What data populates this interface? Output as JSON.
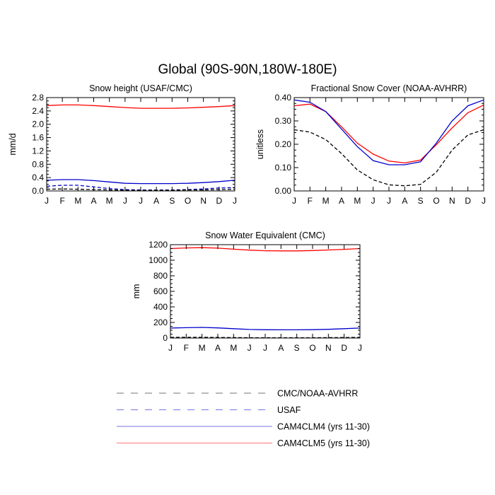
{
  "page_title": "Global (90S-90N,180W-180E)",
  "months": [
    "J",
    "F",
    "M",
    "A",
    "M",
    "J",
    "J",
    "A",
    "S",
    "O",
    "N",
    "D",
    "J"
  ],
  "legend": [
    {
      "key": "cmc",
      "label": "CMC/NOAA-AVHRR",
      "color": "#000000",
      "dash": "dashed"
    },
    {
      "key": "usaf",
      "label": "USAF",
      "color": "#0000cc",
      "dash": "dashed"
    },
    {
      "key": "clm4",
      "label": "CAM4CLM4 (yrs 11-30)",
      "color": "#0000cc",
      "dash": "solid"
    },
    {
      "key": "clm5",
      "label": "CAM4CLM5 (yrs 11-30)",
      "color": "#ff0000",
      "dash": "solid"
    }
  ],
  "chart_data": [
    {
      "type": "line",
      "title": "Snow height (USAF/CMC)",
      "ylabel": "mm/d",
      "ylim": [
        0,
        2.8
      ],
      "yticks": [
        "0.0",
        "0.4",
        "0.8",
        "1.2",
        "1.6",
        "2.0",
        "2.4",
        "2.8"
      ],
      "ytick_values": [
        0,
        0.4,
        0.8,
        1.2,
        1.6,
        2.0,
        2.4,
        2.8
      ],
      "series": [
        {
          "key": "clm5",
          "values": [
            2.56,
            2.58,
            2.58,
            2.56,
            2.53,
            2.5,
            2.48,
            2.48,
            2.48,
            2.49,
            2.51,
            2.53,
            2.56
          ]
        },
        {
          "key": "clm4",
          "values": [
            0.32,
            0.34,
            0.34,
            0.31,
            0.27,
            0.23,
            0.22,
            0.22,
            0.22,
            0.23,
            0.25,
            0.28,
            0.32
          ]
        },
        {
          "key": "usaf",
          "values": [
            0.14,
            0.17,
            0.17,
            0.12,
            0.07,
            0.04,
            0.03,
            0.03,
            0.03,
            0.04,
            0.06,
            0.09,
            0.1
          ]
        },
        {
          "key": "cmc",
          "values": [
            0.05,
            0.06,
            0.05,
            0.04,
            0.03,
            0.02,
            0.02,
            0.02,
            0.02,
            0.03,
            0.03,
            0.04,
            0.05
          ]
        }
      ]
    },
    {
      "type": "line",
      "title": "Fractional Snow Cover (NOAA-AVHRR)",
      "ylabel": "unitless",
      "ylim": [
        0,
        0.4
      ],
      "yticks": [
        "0.00",
        "0.10",
        "0.20",
        "0.30",
        "0.40"
      ],
      "ytick_values": [
        0,
        0.1,
        0.2,
        0.3,
        0.4
      ],
      "series": [
        {
          "key": "clm5",
          "values": [
            0.365,
            0.372,
            0.34,
            0.275,
            0.205,
            0.158,
            0.128,
            0.12,
            0.132,
            0.198,
            0.27,
            0.335,
            0.368
          ]
        },
        {
          "key": "clm4",
          "values": [
            0.39,
            0.38,
            0.34,
            0.265,
            0.19,
            0.13,
            0.112,
            0.112,
            0.125,
            0.205,
            0.3,
            0.365,
            0.39
          ]
        },
        {
          "key": "cmc",
          "values": [
            0.262,
            0.252,
            0.22,
            0.16,
            0.09,
            0.048,
            0.026,
            0.022,
            0.028,
            0.08,
            0.175,
            0.24,
            0.262
          ]
        }
      ]
    },
    {
      "type": "line",
      "title": "Snow Water Equivalent (CMC)",
      "ylabel": "mm",
      "ylim": [
        0,
        1200
      ],
      "yticks": [
        "0",
        "200",
        "400",
        "600",
        "800",
        "1000",
        "1200"
      ],
      "ytick_values": [
        0,
        200,
        400,
        600,
        800,
        1000,
        1200
      ],
      "series": [
        {
          "key": "clm5",
          "values": [
            1150,
            1158,
            1162,
            1155,
            1142,
            1130,
            1122,
            1120,
            1120,
            1125,
            1132,
            1140,
            1150
          ]
        },
        {
          "key": "clm4",
          "values": [
            128,
            133,
            136,
            130,
            120,
            110,
            106,
            105,
            105,
            107,
            112,
            120,
            128
          ]
        },
        {
          "key": "cmc",
          "values": [
            8,
            9,
            9,
            7,
            5,
            4,
            3,
            3,
            3,
            4,
            5,
            6,
            8
          ]
        }
      ]
    }
  ]
}
